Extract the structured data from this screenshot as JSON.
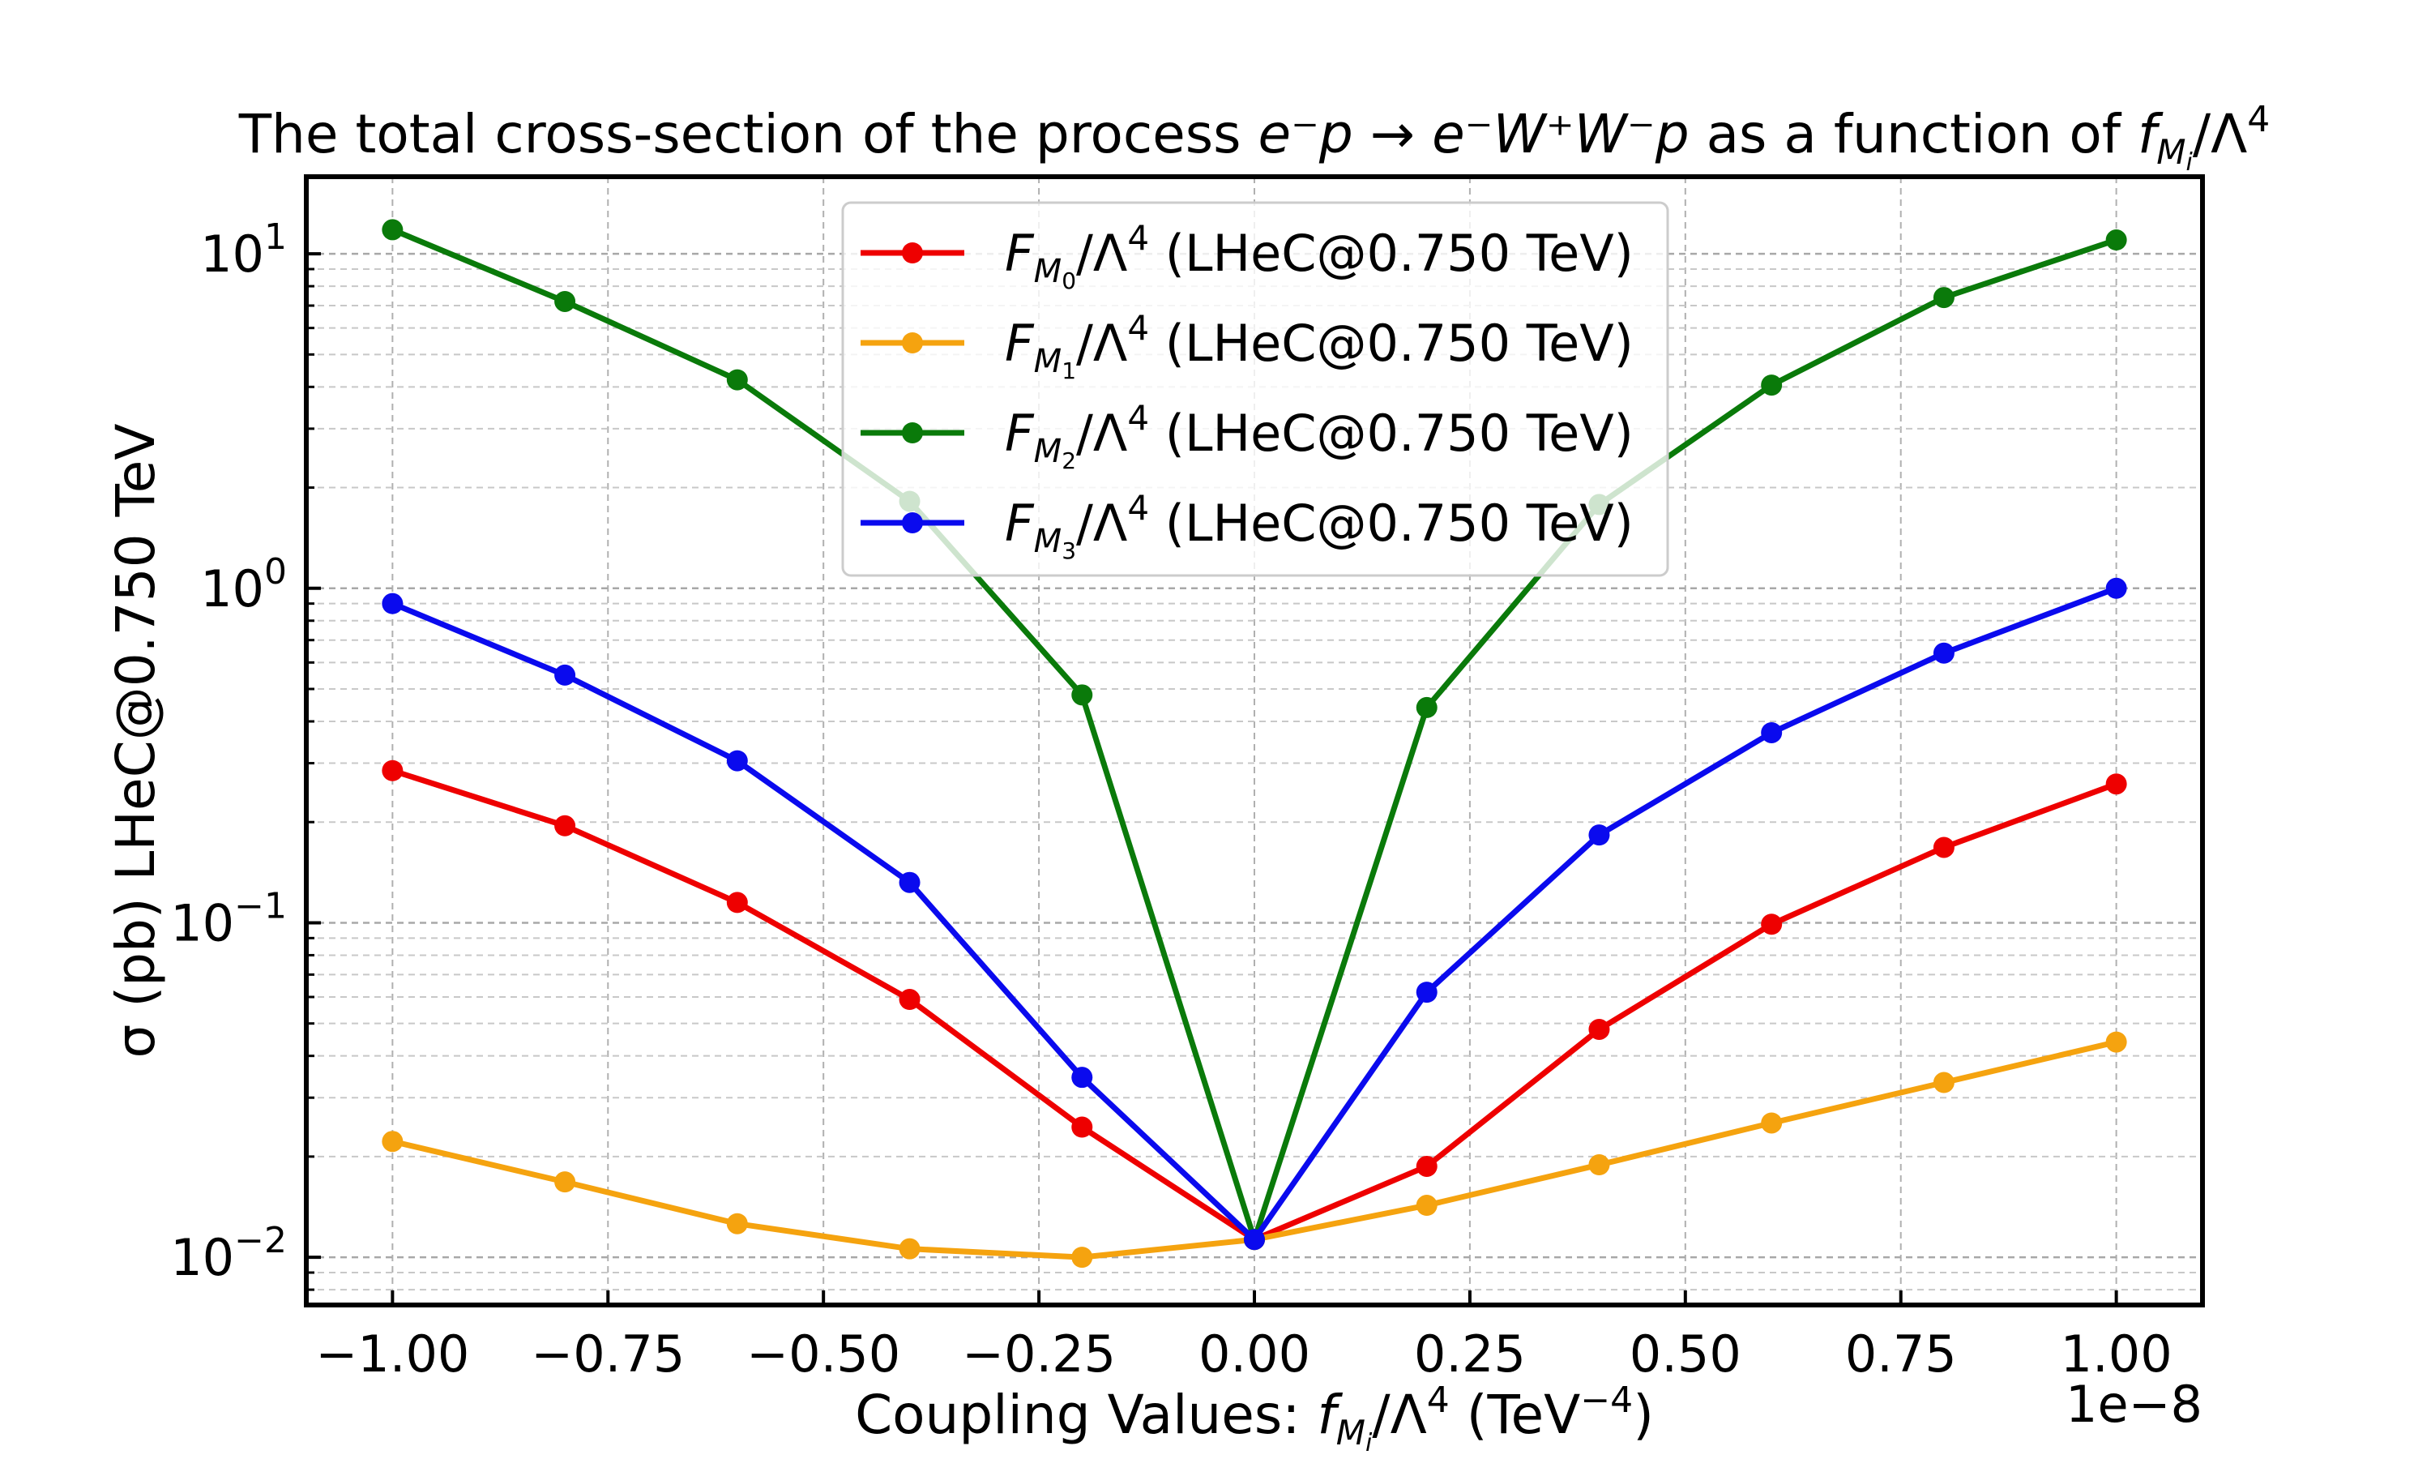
{
  "chart_data": {
    "type": "line",
    "title": {
      "prefix": "The total cross-section of the process ",
      "process": "e⁻p → e⁻W⁺W⁻p",
      "middle": " as a function of ",
      "coupling_main": "f",
      "coupling_sub": "M",
      "coupling_subsub": "i",
      "coupling_tail": "/Λ",
      "coupling_sup": "4"
    },
    "xlabel": {
      "prefix": "Coupling Values: ",
      "main": "f",
      "sub": "M",
      "subsub": "i",
      "tail": "/Λ",
      "sup": "4",
      "unit_open": " (TeV",
      "unit_sup": "−4",
      "unit_close": ")"
    },
    "ylabel": "σ (pb)  LHeC@0.750 TeV",
    "x_offset_label": "1e−8",
    "x_scale": 1e-08,
    "xlim": [
      -1.1,
      1.1
    ],
    "ylim": [
      0.0072,
      17
    ],
    "y_scale": "log",
    "grid": true,
    "legend_position": "upper-center",
    "x_ticks": [
      -1.0,
      -0.75,
      -0.5,
      -0.25,
      0.0,
      0.25,
      0.5,
      0.75,
      1.0
    ],
    "x_tick_labels": [
      "−1.00",
      "−0.75",
      "−0.50",
      "−0.25",
      "0.00",
      "0.25",
      "0.50",
      "0.75",
      "1.00"
    ],
    "y_ticks": [
      {
        "value": 0.01,
        "base": "10",
        "exp": "−2"
      },
      {
        "value": 0.1,
        "base": "10",
        "exp": "−1"
      },
      {
        "value": 1,
        "base": "10",
        "exp": "0"
      },
      {
        "value": 10,
        "base": "10",
        "exp": "1"
      }
    ],
    "x": [
      -1.0,
      -0.8,
      -0.6,
      -0.4,
      -0.2,
      0.0,
      0.2,
      0.4,
      0.6,
      0.8,
      1.0
    ],
    "series": [
      {
        "label_main": "F",
        "label_sub": "M",
        "label_subsub": "0",
        "label_tail": "/Λ",
        "label_sup": "4",
        "label_suffix": " (LHeC@0.750 TeV)",
        "color": "#ee0000",
        "values": [
          0.285,
          0.195,
          0.115,
          0.059,
          0.0245,
          0.0113,
          0.0187,
          0.048,
          0.099,
          0.168,
          0.26
        ]
      },
      {
        "label_main": "F",
        "label_sub": "M",
        "label_subsub": "1",
        "label_tail": "/Λ",
        "label_sup": "4",
        "label_suffix": " (LHeC@0.750 TeV)",
        "color": "#f5a30f",
        "values": [
          0.0222,
          0.0168,
          0.0126,
          0.0106,
          0.01,
          0.0113,
          0.0143,
          0.0189,
          0.0252,
          0.0333,
          0.044
        ]
      },
      {
        "label_main": "F",
        "label_sub": "M",
        "label_subsub": "2",
        "label_tail": "/Λ",
        "label_sup": "4",
        "label_suffix": " (LHeC@0.750 TeV)",
        "color": "#0a7a0a",
        "values": [
          11.8,
          7.2,
          4.2,
          1.82,
          0.48,
          0.0113,
          0.44,
          1.78,
          4.05,
          7.4,
          11.0
        ]
      },
      {
        "label_main": "F",
        "label_sub": "M",
        "label_subsub": "3",
        "label_tail": "/Λ",
        "label_sup": "4",
        "label_suffix": " (LHeC@0.750 TeV)",
        "color": "#0a0aee",
        "values": [
          0.9,
          0.55,
          0.305,
          0.132,
          0.0345,
          0.0113,
          0.062,
          0.183,
          0.37,
          0.64,
          1.0
        ]
      }
    ]
  }
}
